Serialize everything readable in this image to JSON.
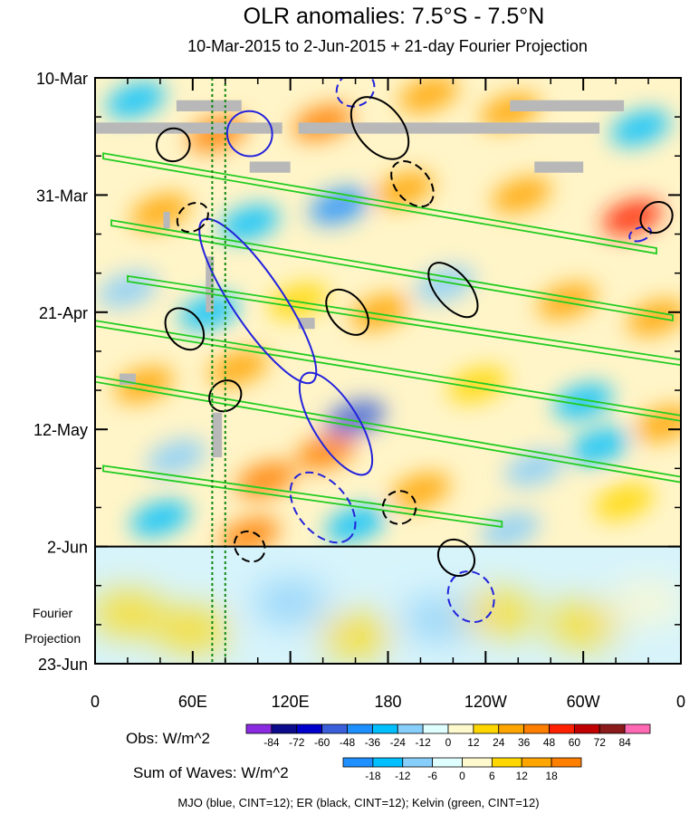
{
  "chart_data": {
    "type": "heatmap",
    "title": "OLR anomalies: 7.5°S - 7.5°N",
    "subtitle": "10-Mar-2015 to 2-Jun-2015 + 21-day Fourier Projection",
    "x_ticks": [
      "0",
      "60E",
      "120E",
      "180",
      "120W",
      "60W",
      "0"
    ],
    "x_tick_lon": [
      0,
      60,
      120,
      180,
      240,
      300,
      360
    ],
    "y_ticks": [
      "10-Mar",
      "31-Mar",
      "21-Apr",
      "12-May",
      "2-Jun",
      "23-Jun"
    ],
    "y_tick_day": [
      0,
      21,
      42,
      63,
      84,
      105
    ],
    "projection_label_lines": [
      "Fourier",
      "Projection"
    ],
    "obs_end_day": 84,
    "total_days": 105,
    "obs_colorbar": {
      "label": "Obs: W/m^2",
      "levels": [
        "-84",
        "-72",
        "-60",
        "-48",
        "-36",
        "-24",
        "-12",
        "0",
        "12",
        "24",
        "36",
        "48",
        "60",
        "72",
        "84"
      ],
      "colors": [
        "#8a2be2",
        "#0b0b8c",
        "#0000cd",
        "#3a5fd9",
        "#1e90ff",
        "#00bfff",
        "#87cefa",
        "#e0ffff",
        "#fffacd",
        "#ffd700",
        "#ffa500",
        "#ff7f00",
        "#ff2000",
        "#c00000",
        "#8b1a1a",
        "#ff69b4"
      ]
    },
    "waves_colorbar": {
      "label": "Sum of Waves: W/m^2",
      "levels": [
        "-18",
        "-12",
        "-6",
        "0",
        "6",
        "12",
        "18"
      ],
      "colors": [
        "#1e90ff",
        "#00bfff",
        "#87cefa",
        "#e0ffff",
        "#fffacd",
        "#ffd700",
        "#ffa500",
        "#ff7f00"
      ]
    },
    "footnote": "MJO (blue, CINT=12); ER (black, CINT=12); Kelvin (green, CINT=12)",
    "contour_colors": {
      "MJO": "#2222dd",
      "ER": "#000000",
      "Kelvin": "#22cc22"
    },
    "reference_lines_lon": [
      72,
      80
    ],
    "missing_data_color": "#b8b8b8",
    "anomaly_blobs": [
      {
        "lon": 25,
        "day": 4,
        "v": -30
      },
      {
        "lon": 75,
        "day": 10,
        "v": 40
      },
      {
        "lon": 140,
        "day": 8,
        "v": 36
      },
      {
        "lon": 205,
        "day": 3,
        "v": 24
      },
      {
        "lon": 255,
        "day": 6,
        "v": 30
      },
      {
        "lon": 335,
        "day": 9,
        "v": -30
      },
      {
        "lon": 40,
        "day": 24,
        "v": 32
      },
      {
        "lon": 95,
        "day": 26,
        "v": -28
      },
      {
        "lon": 150,
        "day": 23,
        "v": -40
      },
      {
        "lon": 190,
        "day": 20,
        "v": 28
      },
      {
        "lon": 262,
        "day": 21,
        "v": 24
      },
      {
        "lon": 330,
        "day": 25,
        "v": 48
      },
      {
        "lon": 20,
        "day": 38,
        "v": -22
      },
      {
        "lon": 70,
        "day": 42,
        "v": -36
      },
      {
        "lon": 125,
        "day": 40,
        "v": 20
      },
      {
        "lon": 175,
        "day": 42,
        "v": 34
      },
      {
        "lon": 215,
        "day": 37,
        "v": -24
      },
      {
        "lon": 290,
        "day": 40,
        "v": 26
      },
      {
        "lon": 345,
        "day": 43,
        "v": 30
      },
      {
        "lon": 30,
        "day": 55,
        "v": 30
      },
      {
        "lon": 88,
        "day": 52,
        "v": 28
      },
      {
        "lon": 160,
        "day": 61,
        "v": -60
      },
      {
        "lon": 235,
        "day": 55,
        "v": 22
      },
      {
        "lon": 300,
        "day": 58,
        "v": -26
      },
      {
        "lon": 350,
        "day": 62,
        "v": 24
      },
      {
        "lon": 50,
        "day": 68,
        "v": -24
      },
      {
        "lon": 105,
        "day": 72,
        "v": 40
      },
      {
        "lon": 142,
        "day": 67,
        "v": 44
      },
      {
        "lon": 200,
        "day": 74,
        "v": 28
      },
      {
        "lon": 270,
        "day": 70,
        "v": -22
      },
      {
        "lon": 325,
        "day": 76,
        "v": 22
      },
      {
        "lon": 95,
        "day": 82,
        "v": 36
      },
      {
        "lon": 160,
        "day": 80,
        "v": -30
      },
      {
        "lon": 255,
        "day": 81,
        "v": -24
      },
      {
        "lon": 40,
        "day": 79,
        "v": -26
      },
      {
        "lon": 310,
        "day": 66,
        "v": -30
      }
    ],
    "projection_blobs": [
      {
        "lon": 20,
        "day": 96,
        "v": 10
      },
      {
        "lon": 60,
        "day": 99,
        "v": 8
      },
      {
        "lon": 120,
        "day": 94,
        "v": -8
      },
      {
        "lon": 160,
        "day": 100,
        "v": 6
      },
      {
        "lon": 212,
        "day": 97,
        "v": -10
      },
      {
        "lon": 248,
        "day": 96,
        "v": 9
      },
      {
        "lon": 300,
        "day": 98,
        "v": 6
      },
      {
        "lon": 340,
        "day": 94,
        "v": 4
      }
    ],
    "mjo_contours": [
      {
        "lon": 160,
        "day": 2,
        "rx": 12,
        "ry": 3,
        "rot": -30,
        "sign": -1
      },
      {
        "lon": 95,
        "day": 10,
        "rx": 14,
        "ry": 4,
        "rot": 45,
        "sign": 1
      },
      {
        "lon": 100,
        "day": 40,
        "rx": 60,
        "ry": 4.5,
        "rot": 56,
        "sign": 1
      },
      {
        "lon": 148,
        "day": 62,
        "rx": 36,
        "ry": 4,
        "rot": 58,
        "sign": 1
      },
      {
        "lon": 140,
        "day": 77,
        "rx": 25,
        "ry": 4.5,
        "rot": 50,
        "sign": -1
      },
      {
        "lon": 231,
        "day": 93,
        "rx": 16,
        "ry": 4,
        "rot": 64,
        "sign": -1
      },
      {
        "lon": 335,
        "day": 28,
        "rx": 4,
        "ry": 2,
        "rot": 70,
        "sign": -1
      }
    ],
    "er_contours": [
      {
        "lon": 48,
        "day": 12,
        "rx": 10,
        "ry": 3,
        "rot": 52,
        "sign": 1
      },
      {
        "lon": 60,
        "day": 25,
        "rx": 8,
        "ry": 3,
        "rot": 52,
        "sign": -1
      },
      {
        "lon": 55,
        "day": 45,
        "rx": 14,
        "ry": 3,
        "rot": 52,
        "sign": 1
      },
      {
        "lon": 80,
        "day": 57,
        "rx": 9,
        "ry": 3,
        "rot": 52,
        "sign": 1
      },
      {
        "lon": 175,
        "day": 9,
        "rx": 22,
        "ry": 4,
        "rot": 50,
        "sign": 1
      },
      {
        "lon": 195,
        "day": 19,
        "rx": 16,
        "ry": 3,
        "rot": 50,
        "sign": -1
      },
      {
        "lon": 155,
        "day": 42,
        "rx": 16,
        "ry": 3,
        "rot": 50,
        "sign": 1
      },
      {
        "lon": 220,
        "day": 38,
        "rx": 20,
        "ry": 3,
        "rot": 50,
        "sign": 1
      },
      {
        "lon": 95,
        "day": 84,
        "rx": 10,
        "ry": 2.5,
        "rot": 45,
        "sign": -1
      },
      {
        "lon": 187,
        "day": 77,
        "rx": 10,
        "ry": 3,
        "rot": 52,
        "sign": -1
      },
      {
        "lon": 222,
        "day": 86,
        "rx": 12,
        "ry": 3,
        "rot": 45,
        "sign": 1
      },
      {
        "lon": 345,
        "day": 25,
        "rx": 9,
        "ry": 3,
        "rot": 52,
        "sign": 1
      }
    ],
    "kelvin_bands": [
      {
        "lon0": 5,
        "day0": 14,
        "lon1": 345,
        "day1": 31
      },
      {
        "lon0": 10,
        "day0": 26,
        "lon1": 355,
        "day1": 43
      },
      {
        "lon0": 20,
        "day0": 36,
        "lon1": 360,
        "day1": 51
      },
      {
        "lon0": 0,
        "day0": 44,
        "lon1": 360,
        "day1": 61
      },
      {
        "lon0": 0,
        "day0": 54,
        "lon1": 360,
        "day1": 72
      },
      {
        "lon0": 5,
        "day0": 70,
        "lon1": 250,
        "day1": 80
      }
    ]
  }
}
